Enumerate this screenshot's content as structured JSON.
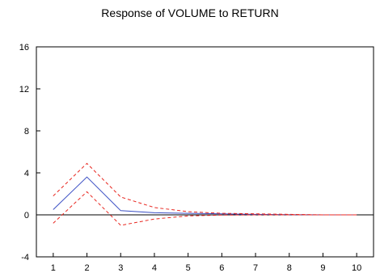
{
  "chart_data": {
    "type": "line",
    "title": "Response of VOLUME to RETURN",
    "xlabel": "",
    "ylabel": "",
    "x": [
      1,
      2,
      3,
      4,
      5,
      6,
      7,
      8,
      9,
      10
    ],
    "x_tick_labels": [
      "1",
      "2",
      "3",
      "4",
      "5",
      "6",
      "7",
      "8",
      "9",
      "10"
    ],
    "y_tick_values": [
      -4,
      0,
      4,
      8,
      12,
      16
    ],
    "y_tick_labels": [
      "-4",
      "0",
      "4",
      "8",
      "12",
      "16"
    ],
    "ylim": [
      -4,
      16
    ],
    "xlim": [
      0.5,
      10.5
    ],
    "zero_line": true,
    "grid": false,
    "series": [
      {
        "role": "response",
        "style": "solid",
        "color": "#3b4fc4",
        "values": [
          0.5,
          3.6,
          0.4,
          0.2,
          0.15,
          0.1,
          0.05,
          0.02,
          0.0,
          0.0
        ]
      },
      {
        "role": "upper-band",
        "style": "dashed",
        "color": "#e8261f",
        "values": [
          1.8,
          4.9,
          1.7,
          0.7,
          0.3,
          0.15,
          0.1,
          0.05,
          0.0,
          0.0
        ]
      },
      {
        "role": "lower-band",
        "style": "dashed",
        "color": "#e8261f",
        "values": [
          -0.8,
          2.2,
          -1.0,
          -0.4,
          -0.1,
          -0.02,
          0.0,
          0.0,
          0.0,
          0.0
        ]
      }
    ]
  }
}
